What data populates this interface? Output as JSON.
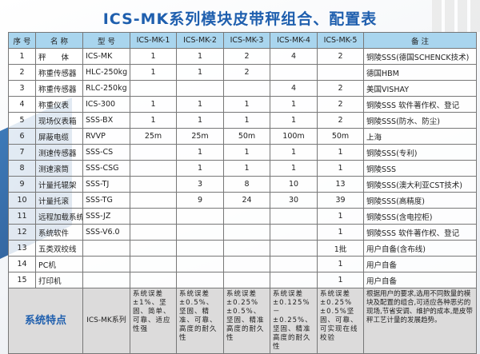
{
  "title": "ICS-MK系列模块皮带秤组合、配置表",
  "headers": [
    "序 号",
    "名 称",
    "型 号",
    "ICS-MK-1",
    "ICS-MK-2",
    "ICS-MK-3",
    "ICS-MK-4",
    "ICS-MK-5",
    "备 注"
  ],
  "row_colors": {
    "header": "#a9d5ee",
    "r2": "#f6dee3",
    "r4": "#fbe9cf",
    "r6": "#ead7dd",
    "r8": "#dad5e8",
    "r10": "#abd3dc",
    "r12": "#fbe9cf",
    "r14": "#dcead6",
    "features": "#dcdbdb",
    "title": "#1f5fae"
  },
  "rows": [
    [
      "1",
      "秤　　体",
      "ICS-MK",
      "1",
      "1",
      "2",
      "4",
      "2",
      "铜陵SSS(德国SCHENCK技术)"
    ],
    [
      "2",
      "称重传感器",
      "HLC-250kg",
      "1",
      "1",
      "2",
      "",
      "",
      "德国HBM"
    ],
    [
      "3",
      "称重传感器",
      "RLC-250kg",
      "",
      "",
      "",
      "4",
      "2",
      "美国VISHAY"
    ],
    [
      "4",
      "称重仪表",
      "ICS-300",
      "1",
      "1",
      "1",
      "1",
      "2",
      "铜陵SSS 软件著作权、登记"
    ],
    [
      "5",
      "现场仪表箱",
      "SSS-BX",
      "1",
      "1",
      "1",
      "1",
      "2",
      "铜陵SSS(防水、防尘)"
    ],
    [
      "6",
      "屏蔽电缆",
      "RVVP",
      "25m",
      "25m",
      "50m",
      "100m",
      "50m",
      "上海"
    ],
    [
      "7",
      "测速传感器",
      "SSS-CS",
      "",
      "1",
      "1",
      "1",
      "1",
      "铜陵SSS(专利)"
    ],
    [
      "8",
      "测速滚筒",
      "SSS-CSG",
      "",
      "1",
      "1",
      "1",
      "1",
      "铜陵SSS"
    ],
    [
      "9",
      "计量托辊架",
      "SSS-TJ",
      "",
      "3",
      "8",
      "10",
      "13",
      "铜陵SSS(澳大利亚CST技术)"
    ],
    [
      "10",
      "计量托滚",
      "SSS-TG",
      "",
      "9",
      "24",
      "30",
      "39",
      "铜陵SSS(高精度)"
    ],
    [
      "11",
      "远程加载系统",
      "SSS-JZ",
      "",
      "",
      "",
      "",
      "1",
      "铜陵SSS(含电控柜)"
    ],
    [
      "12",
      "系统软件",
      "SSS-V6.0",
      "",
      "",
      "",
      "",
      "1",
      "铜陵SSS 软件著作权、登记"
    ],
    [
      "13",
      "五类双绞线",
      "",
      "",
      "",
      "",
      "",
      "1批",
      "用户自备(含布线)"
    ],
    [
      "14",
      "PC机",
      "",
      "",
      "",
      "",
      "",
      "1",
      "用户自备"
    ],
    [
      "15",
      "打印机",
      "",
      "",
      "",
      "",
      "",
      "1",
      "用户自备"
    ]
  ],
  "features": {
    "label": "系统特点",
    "model": "ICS-MK系列",
    "items": [
      "系统误差±1%、坚固、简单、可靠、适应性强",
      "系统误差±0.5%、坚固、精准、可靠、高度的耐久性",
      "系统误差±0.25%±0.5%、坚固、精准高度的耐久性",
      "系统误差±0.125%－±0.25%、坚固、精准高度的耐久性",
      "系统误差±0.25%±0.5%坚固、可靠、可实现在线校验"
    ],
    "remark": "根据用户的要求,选用不同数量的模块及配置的组合,可适应各种恶劣的现场,节省安调、维护的成本,是皮带秤工艺计量的发展趋势。"
  }
}
